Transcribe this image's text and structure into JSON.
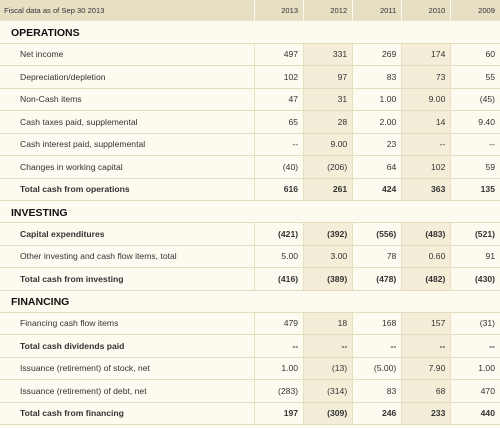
{
  "header": {
    "label": "Fiscal data as of Sep 30 2013",
    "years": [
      "2013",
      "2012",
      "2011",
      "2010",
      "2009"
    ]
  },
  "sections": [
    {
      "title": "OPERATIONS",
      "rows": [
        {
          "label": "Net income",
          "values": [
            "497",
            "331",
            "269",
            "174",
            "60"
          ],
          "bold": false
        },
        {
          "label": "Depreciation/depletion",
          "values": [
            "102",
            "97",
            "83",
            "73",
            "55"
          ],
          "bold": false
        },
        {
          "label": "Non-Cash items",
          "values": [
            "47",
            "31",
            "1.00",
            "9.00",
            "(45)"
          ],
          "bold": false
        },
        {
          "label": "Cash taxes paid, supplemental",
          "values": [
            "65",
            "28",
            "2.00",
            "14",
            "9.40"
          ],
          "bold": false
        },
        {
          "label": "Cash interest paid, supplemental",
          "values": [
            "--",
            "9.00",
            "23",
            "--",
            "--"
          ],
          "bold": false
        },
        {
          "label": "Changes in working capital",
          "values": [
            "(40)",
            "(206)",
            "64",
            "102",
            "59"
          ],
          "bold": false
        },
        {
          "label": "Total cash from operations",
          "values": [
            "616",
            "261",
            "424",
            "363",
            "135"
          ],
          "bold": true
        }
      ]
    },
    {
      "title": "INVESTING",
      "rows": [
        {
          "label": "Capital expenditures",
          "values": [
            "(421)",
            "(392)",
            "(556)",
            "(483)",
            "(521)"
          ],
          "bold": true
        },
        {
          "label": "Other investing and cash flow items, total",
          "values": [
            "5.00",
            "3.00",
            "78",
            "0.60",
            "91"
          ],
          "bold": false
        },
        {
          "label": "Total cash from investing",
          "values": [
            "(416)",
            "(389)",
            "(478)",
            "(482)",
            "(430)"
          ],
          "bold": true
        }
      ]
    },
    {
      "title": "FINANCING",
      "rows": [
        {
          "label": "Financing cash flow items",
          "values": [
            "479",
            "18",
            "168",
            "157",
            "(31)"
          ],
          "bold": false
        },
        {
          "label": "Total cash dividends paid",
          "values": [
            "--",
            "--",
            "--",
            "--",
            "--"
          ],
          "bold": true
        },
        {
          "label": "Issuance (retirement) of stock, net",
          "values": [
            "1.00",
            "(13)",
            "(5.00)",
            "7.90",
            "1.00"
          ],
          "bold": false
        },
        {
          "label": "Issuance (retirement) of debt, net",
          "values": [
            "(283)",
            "(314)",
            "83",
            "68",
            "470"
          ],
          "bold": false
        },
        {
          "label": "Total cash from financing",
          "values": [
            "197",
            "(309)",
            "246",
            "233",
            "440"
          ],
          "bold": true
        }
      ]
    }
  ]
}
